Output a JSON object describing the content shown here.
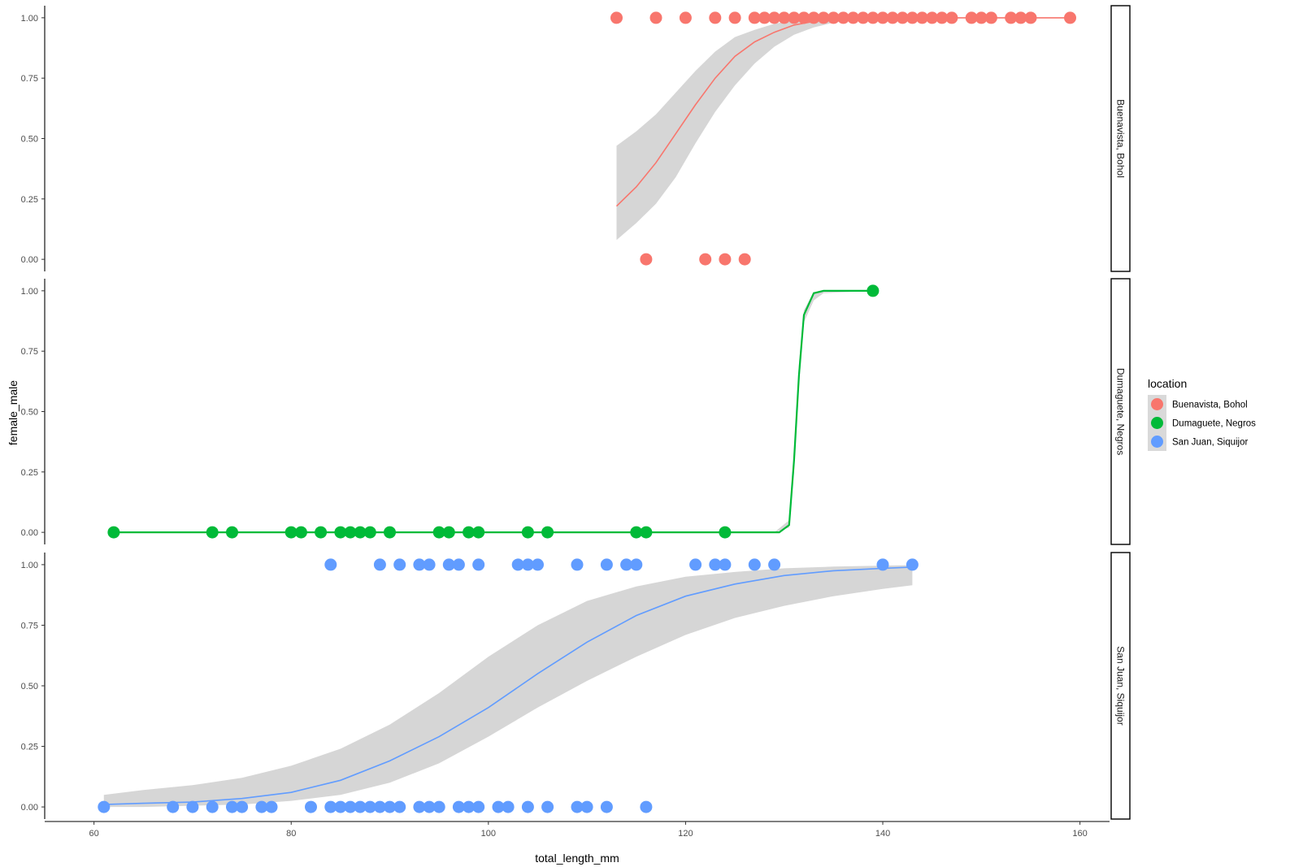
{
  "chart_data": {
    "type": "scatter",
    "xlabel": "total_length_mm",
    "ylabel": "female_male",
    "xlim": [
      55,
      163
    ],
    "ylim": [
      -0.05,
      1.05
    ],
    "x_ticks": [
      60,
      80,
      100,
      120,
      140,
      160
    ],
    "y_ticks": [
      0,
      0.25,
      0.5,
      0.75,
      1
    ],
    "y_tick_labels": [
      "0.00",
      "0.25",
      "0.50",
      "0.75",
      "1.00"
    ],
    "grid": false,
    "legend": {
      "title": "location",
      "placement": "right",
      "entries": [
        "Buenavista, Bohol",
        "Dumaguete, Negros",
        "San Juan, Siquijor"
      ]
    },
    "facets": [
      {
        "label": "Buenavista, Bohol",
        "color": "#F8766D",
        "points": [
          [
            113,
            1
          ],
          [
            117,
            1
          ],
          [
            120,
            1
          ],
          [
            123,
            1
          ],
          [
            125,
            1
          ],
          [
            127,
            1
          ],
          [
            128,
            1
          ],
          [
            129,
            1
          ],
          [
            130,
            1
          ],
          [
            131,
            1
          ],
          [
            132,
            1
          ],
          [
            133,
            1
          ],
          [
            134,
            1
          ],
          [
            135,
            1
          ],
          [
            136,
            1
          ],
          [
            137,
            1
          ],
          [
            138,
            1
          ],
          [
            139,
            1
          ],
          [
            140,
            1
          ],
          [
            141,
            1
          ],
          [
            142,
            1
          ],
          [
            143,
            1
          ],
          [
            144,
            1
          ],
          [
            145,
            1
          ],
          [
            146,
            1
          ],
          [
            147,
            1
          ],
          [
            149,
            1
          ],
          [
            150,
            1
          ],
          [
            151,
            1
          ],
          [
            153,
            1
          ],
          [
            154,
            1
          ],
          [
            155,
            1
          ],
          [
            159,
            1
          ],
          [
            116,
            0
          ],
          [
            122,
            0
          ],
          [
            124,
            0
          ],
          [
            126,
            0
          ]
        ],
        "fit": [
          [
            113,
            0.22
          ],
          [
            115,
            0.3
          ],
          [
            117,
            0.4
          ],
          [
            119,
            0.52
          ],
          [
            121,
            0.64
          ],
          [
            123,
            0.75
          ],
          [
            125,
            0.84
          ],
          [
            127,
            0.9
          ],
          [
            129,
            0.94
          ],
          [
            131,
            0.97
          ],
          [
            133,
            0.985
          ],
          [
            135,
            0.993
          ],
          [
            137,
            0.997
          ],
          [
            140,
            0.999
          ],
          [
            145,
            1.0
          ],
          [
            150,
            1.0
          ],
          [
            155,
            1.0
          ],
          [
            159,
            1.0
          ]
        ],
        "band_upper": [
          [
            113,
            0.47
          ],
          [
            115,
            0.53
          ],
          [
            117,
            0.6
          ],
          [
            119,
            0.69
          ],
          [
            121,
            0.78
          ],
          [
            123,
            0.86
          ],
          [
            125,
            0.92
          ],
          [
            127,
            0.95
          ],
          [
            129,
            0.975
          ],
          [
            131,
            0.99
          ],
          [
            133,
            0.995
          ],
          [
            136,
            0.999
          ],
          [
            140,
            1.0
          ],
          [
            159,
            1.0
          ]
        ],
        "band_lower": [
          [
            113,
            0.08
          ],
          [
            115,
            0.15
          ],
          [
            117,
            0.23
          ],
          [
            119,
            0.34
          ],
          [
            121,
            0.48
          ],
          [
            123,
            0.61
          ],
          [
            125,
            0.72
          ],
          [
            127,
            0.81
          ],
          [
            129,
            0.88
          ],
          [
            131,
            0.93
          ],
          [
            133,
            0.96
          ],
          [
            135,
            0.98
          ],
          [
            137,
            0.99
          ],
          [
            140,
            0.996
          ],
          [
            145,
            0.999
          ],
          [
            150,
            1.0
          ],
          [
            159,
            1.0
          ]
        ]
      },
      {
        "label": "Dumaguete, Negros",
        "color": "#00BA38",
        "points": [
          [
            62,
            0
          ],
          [
            72,
            0
          ],
          [
            74,
            0
          ],
          [
            80,
            0
          ],
          [
            81,
            0
          ],
          [
            83,
            0
          ],
          [
            85,
            0
          ],
          [
            86,
            0
          ],
          [
            87,
            0
          ],
          [
            88,
            0
          ],
          [
            90,
            0
          ],
          [
            95,
            0
          ],
          [
            96,
            0
          ],
          [
            98,
            0
          ],
          [
            99,
            0
          ],
          [
            104,
            0
          ],
          [
            106,
            0
          ],
          [
            115,
            0
          ],
          [
            116,
            0
          ],
          [
            124,
            0
          ],
          [
            139,
            1
          ]
        ],
        "fit": [
          [
            62,
            0
          ],
          [
            129.5,
            0
          ],
          [
            130.5,
            0.03
          ],
          [
            131,
            0.3
          ],
          [
            131.5,
            0.65
          ],
          [
            132,
            0.9
          ],
          [
            133,
            0.99
          ],
          [
            134,
            1.0
          ],
          [
            139,
            1.0
          ]
        ],
        "band_upper": [
          [
            129,
            0.0
          ],
          [
            130.5,
            0.05
          ],
          [
            131,
            0.35
          ],
          [
            131.5,
            0.7
          ],
          [
            132,
            0.92
          ],
          [
            133,
            0.995
          ],
          [
            139,
            1.0
          ]
        ],
        "band_lower": [
          [
            129,
            0.0
          ],
          [
            130.5,
            0.02
          ],
          [
            131,
            0.25
          ],
          [
            131.5,
            0.6
          ],
          [
            132,
            0.87
          ],
          [
            133,
            0.96
          ],
          [
            134,
            0.99
          ],
          [
            139,
            1.0
          ]
        ]
      },
      {
        "label": "San Juan, Siquijor",
        "color": "#619CFF",
        "points": [
          [
            84,
            1
          ],
          [
            89,
            1
          ],
          [
            91,
            1
          ],
          [
            93,
            1
          ],
          [
            94,
            1
          ],
          [
            96,
            1
          ],
          [
            97,
            1
          ],
          [
            99,
            1
          ],
          [
            103,
            1
          ],
          [
            104,
            1
          ],
          [
            105,
            1
          ],
          [
            109,
            1
          ],
          [
            112,
            1
          ],
          [
            114,
            1
          ],
          [
            115,
            1
          ],
          [
            121,
            1
          ],
          [
            123,
            1
          ],
          [
            124,
            1
          ],
          [
            127,
            1
          ],
          [
            129,
            1
          ],
          [
            140,
            1
          ],
          [
            143,
            1
          ],
          [
            61,
            0
          ],
          [
            68,
            0
          ],
          [
            70,
            0
          ],
          [
            72,
            0
          ],
          [
            74,
            0
          ],
          [
            75,
            0
          ],
          [
            77,
            0
          ],
          [
            78,
            0
          ],
          [
            82,
            0
          ],
          [
            84,
            0
          ],
          [
            85,
            0
          ],
          [
            86,
            0
          ],
          [
            87,
            0
          ],
          [
            88,
            0
          ],
          [
            89,
            0
          ],
          [
            90,
            0
          ],
          [
            91,
            0
          ],
          [
            93,
            0
          ],
          [
            94,
            0
          ],
          [
            95,
            0
          ],
          [
            97,
            0
          ],
          [
            98,
            0
          ],
          [
            99,
            0
          ],
          [
            101,
            0
          ],
          [
            102,
            0
          ],
          [
            104,
            0
          ],
          [
            106,
            0
          ],
          [
            109,
            0
          ],
          [
            110,
            0
          ],
          [
            112,
            0
          ],
          [
            116,
            0
          ]
        ],
        "fit": [
          [
            61,
            0.01
          ],
          [
            65,
            0.015
          ],
          [
            70,
            0.02
          ],
          [
            75,
            0.035
          ],
          [
            80,
            0.06
          ],
          [
            85,
            0.11
          ],
          [
            90,
            0.19
          ],
          [
            95,
            0.29
          ],
          [
            100,
            0.41
          ],
          [
            105,
            0.55
          ],
          [
            110,
            0.68
          ],
          [
            115,
            0.79
          ],
          [
            120,
            0.87
          ],
          [
            125,
            0.92
          ],
          [
            130,
            0.955
          ],
          [
            135,
            0.975
          ],
          [
            140,
            0.985
          ],
          [
            143,
            0.99
          ]
        ],
        "band_upper": [
          [
            61,
            0.05
          ],
          [
            65,
            0.07
          ],
          [
            70,
            0.09
          ],
          [
            75,
            0.12
          ],
          [
            80,
            0.17
          ],
          [
            85,
            0.24
          ],
          [
            90,
            0.34
          ],
          [
            95,
            0.47
          ],
          [
            100,
            0.62
          ],
          [
            105,
            0.75
          ],
          [
            110,
            0.85
          ],
          [
            115,
            0.91
          ],
          [
            120,
            0.95
          ],
          [
            125,
            0.97
          ],
          [
            130,
            0.985
          ],
          [
            135,
            0.992
          ],
          [
            140,
            0.996
          ],
          [
            143,
            0.998
          ]
        ],
        "band_lower": [
          [
            61,
            0.0
          ],
          [
            65,
            0.0
          ],
          [
            70,
            0.005
          ],
          [
            75,
            0.01
          ],
          [
            80,
            0.025
          ],
          [
            85,
            0.05
          ],
          [
            90,
            0.1
          ],
          [
            95,
            0.18
          ],
          [
            100,
            0.29
          ],
          [
            105,
            0.41
          ],
          [
            110,
            0.52
          ],
          [
            115,
            0.62
          ],
          [
            120,
            0.71
          ],
          [
            125,
            0.78
          ],
          [
            130,
            0.83
          ],
          [
            135,
            0.87
          ],
          [
            140,
            0.9
          ],
          [
            143,
            0.915
          ]
        ]
      }
    ]
  }
}
